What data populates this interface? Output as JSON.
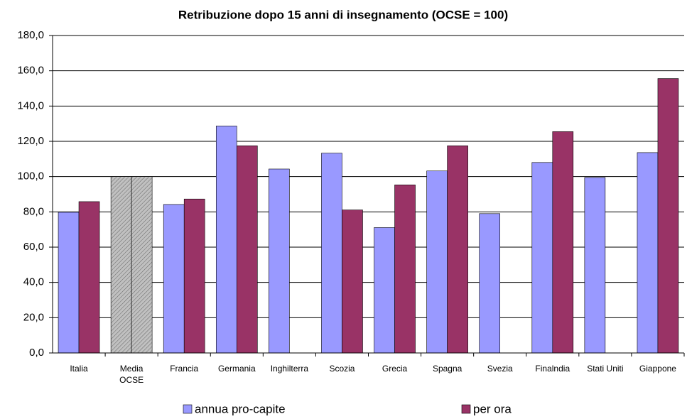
{
  "chart_data": {
    "type": "bar",
    "title": "Retribuzione dopo 15 anni di insegnamento (OCSE = 100)",
    "categories": [
      "Italia",
      "Media OCSE",
      "Francia",
      "Germania",
      "Inghilterra",
      "Scozia",
      "Grecia",
      "Spagna",
      "Svezia",
      "Finalndia",
      "Stati Uniti",
      "Giappone"
    ],
    "series": [
      {
        "name": "annua pro-capite",
        "color": "#9999ff",
        "values": [
          79.8,
          100,
          84.2,
          128.7,
          104.3,
          113.3,
          71.1,
          103.2,
          79.0,
          108.0,
          99.5,
          113.6
        ]
      },
      {
        "name": "per ora",
        "color": "#993366",
        "values": [
          85.8,
          100,
          87.3,
          117.5,
          null,
          81.1,
          95.3,
          117.5,
          null,
          125.5,
          null,
          155.6
        ]
      }
    ],
    "highlight_index": 1,
    "highlight_color": "#c0c0c0",
    "ylim": [
      0,
      180
    ],
    "yticks": [
      {
        "value": 0,
        "label": "0,0"
      },
      {
        "value": 20,
        "label": "20,0"
      },
      {
        "value": 40,
        "label": "40,0"
      },
      {
        "value": 60,
        "label": "60,0"
      },
      {
        "value": 80,
        "label": "80,0"
      },
      {
        "value": 100,
        "label": "100,0"
      },
      {
        "value": 120,
        "label": "120,0"
      },
      {
        "value": 140,
        "label": "140,0"
      },
      {
        "value": 160,
        "label": "160,0"
      },
      {
        "value": 180,
        "label": "180,0"
      }
    ],
    "grid": true,
    "legend": "bottom"
  }
}
